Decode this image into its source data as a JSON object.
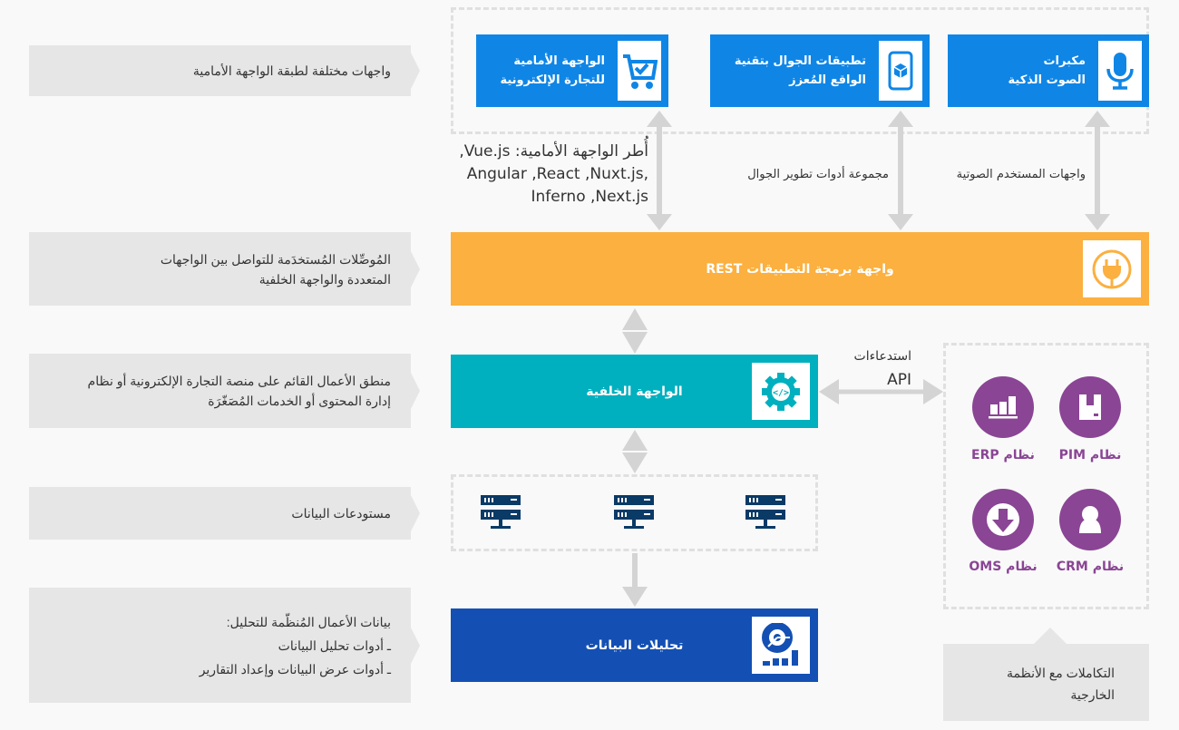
{
  "notes": {
    "frontend_layer": "واجهات مختلفة لطبقة الواجهة الأمامية",
    "connectors": [
      "المُوصِّلات المُستخدَمة للتواصل بين الواجهات",
      "المتعددة والواجهة الخلفية"
    ],
    "business_logic": [
      "منطق الأعمال القائم على منصة التجارة الإلكترونية أو نظام",
      "إدارة المحتوى أو الخدمات المُصَغّرَة"
    ],
    "data_stores": "مستودعات البيانات",
    "analytics": [
      "بيانات الأعمال المُنظّمة للتحليل:",
      "ـ أدوات تحليل البيانات",
      "ـ أدوات عرض البيانات وإعداد التقارير"
    ],
    "integrations": [
      "التكاملات مع الأنظمة",
      "الخارجية"
    ]
  },
  "frontends": [
    {
      "lines": [
        "الواجهة الأمامية",
        "للتجارة الإلكترونية"
      ],
      "icon": "shopping-cart-check-icon"
    },
    {
      "lines": [
        "تطبيقات الجوال بتقنية",
        "الواقع المُعزز"
      ],
      "icon": "mobile-ar-icon"
    },
    {
      "lines": [
        "مكبرات",
        "الصوت الذكية"
      ],
      "icon": "microphone-icon"
    }
  ],
  "connector_labels": {
    "frameworks": [
      "أُطر الواجهة الأمامية: Vue.js,",
      "Angular ,React ,Nuxt.js,",
      "Inferno ,Next.js"
    ],
    "mobile_sdk": "مجموعة أدوات تطوير الجوال",
    "voice_ui": "واجهات المستخدم الصوتية",
    "api_calls": [
      "استدعاءات",
      "API"
    ]
  },
  "rest_api": {
    "label": "واجهة برمجة التطبيقات REST",
    "icon": "plug-icon",
    "color": "#fbb040"
  },
  "backend": {
    "label": "الواجهة الخلفية",
    "icon": "gear-code-icon",
    "color": "#00b0bf"
  },
  "data_analytics": {
    "label": "تحليلات البيانات",
    "icon": "chart-dashboard-icon",
    "color": "#1450b4"
  },
  "systems": [
    {
      "label": "نظام PIM",
      "icon": "box-icon"
    },
    {
      "label": "نظام ERP",
      "icon": "bar-chart-icon"
    },
    {
      "label": "نظام CRM",
      "icon": "user-icon"
    },
    {
      "label": "نظام OMS",
      "icon": "download-arrow-icon"
    }
  ],
  "colors": {
    "frontend": "#0f86e6",
    "systems": "#8a4594",
    "server": "#0a3a66",
    "arrow": "#d4d4d4"
  }
}
